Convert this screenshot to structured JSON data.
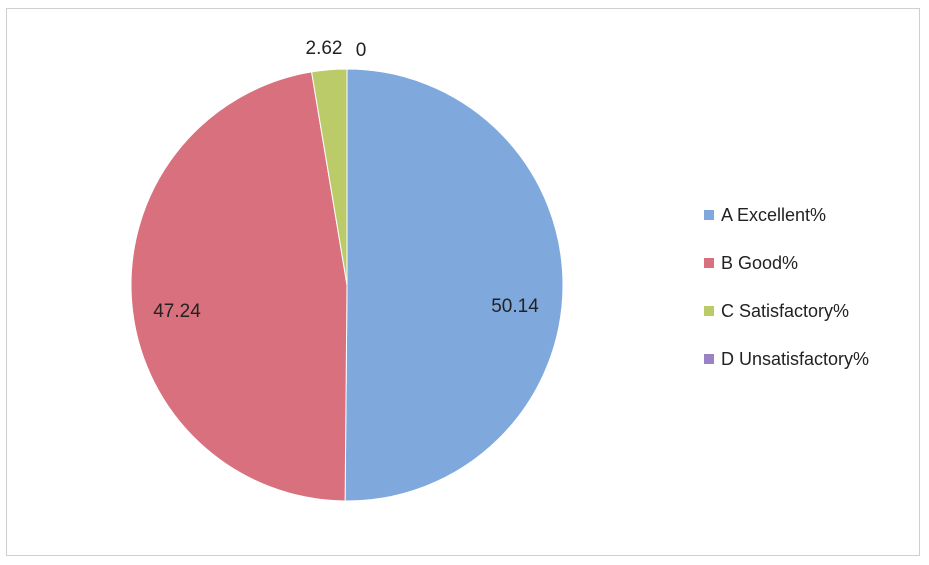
{
  "chart_data": {
    "type": "pie",
    "slices": [
      {
        "label": "A Excellent%",
        "value": 50.14,
        "data_label": "50.14",
        "color": "#7fa9dd"
      },
      {
        "label": "B Good%",
        "value": 47.24,
        "data_label": "47.24",
        "color": "#d8707d"
      },
      {
        "label": "C Satisfactory%",
        "value": 2.62,
        "data_label": "2.62",
        "color": "#bccb6a"
      },
      {
        "label": "D Unsatisfactory%",
        "value": 0,
        "data_label": "0",
        "color": "#9b82c4"
      }
    ],
    "legend_position": "right"
  }
}
